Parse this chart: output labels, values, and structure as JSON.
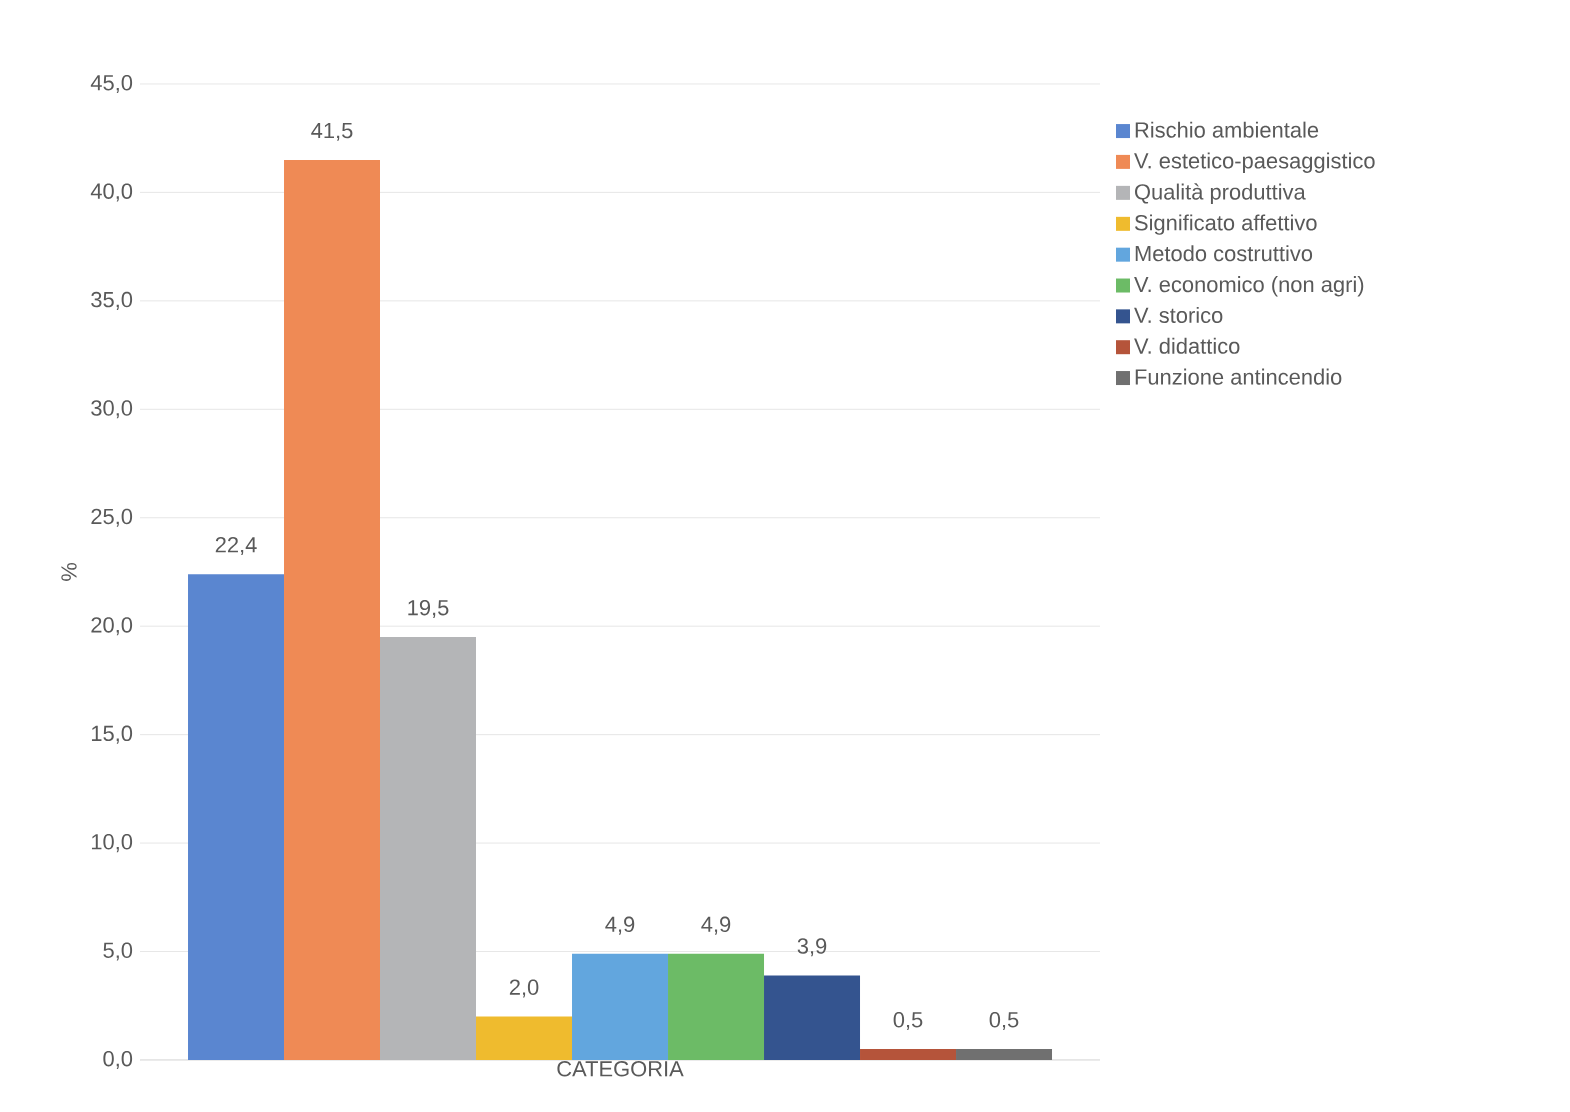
{
  "chart_data": {
    "type": "bar",
    "ylabel": "%",
    "categories": [
      "CATEGORIA"
    ],
    "ylim": [
      0,
      45
    ],
    "yticks": [
      {
        "value": 0,
        "label": "0,0"
      },
      {
        "value": 5,
        "label": "5,0"
      },
      {
        "value": 10,
        "label": "10,0"
      },
      {
        "value": 15,
        "label": "15,0"
      },
      {
        "value": 20,
        "label": "20,0"
      },
      {
        "value": 25,
        "label": "25,0"
      },
      {
        "value": 30,
        "label": "30,0"
      },
      {
        "value": 35,
        "label": "35,0"
      },
      {
        "value": 40,
        "label": "40,0"
      },
      {
        "value": 45,
        "label": "45,0"
      }
    ],
    "grid": "y",
    "legend": "right",
    "series": [
      {
        "name": "Rischio ambientale",
        "color": "#5a86d0",
        "values": [
          22.4
        ],
        "value_labels": [
          "22,4"
        ]
      },
      {
        "name": "V. estetico-paesaggistico",
        "color": "#ef8a55",
        "values": [
          41.5
        ],
        "value_labels": [
          "41,5"
        ]
      },
      {
        "name": "Qualità produttiva",
        "color": "#b4b5b7",
        "values": [
          19.5
        ],
        "value_labels": [
          "19,5"
        ]
      },
      {
        "name": "Significato affettivo",
        "color": "#efbb2e",
        "values": [
          2.0
        ],
        "value_labels": [
          "2,0"
        ]
      },
      {
        "name": "Metodo costruttivo",
        "color": "#62a6de",
        "values": [
          4.9
        ],
        "value_labels": [
          "4,9"
        ]
      },
      {
        "name": "V. economico (non agri)",
        "color": "#6cbb66",
        "values": [
          4.9
        ],
        "value_labels": [
          "4,9"
        ]
      },
      {
        "name": "V. storico",
        "color": "#34548f",
        "values": [
          3.9
        ],
        "value_labels": [
          "3,9"
        ]
      },
      {
        "name": "V. didattico",
        "color": "#b5543a",
        "values": [
          0.5
        ],
        "value_labels": [
          "0,5"
        ]
      },
      {
        "name": "Funzione antincendio",
        "color": "#707070",
        "values": [
          0.5
        ],
        "value_labels": [
          "0,5"
        ]
      }
    ]
  }
}
